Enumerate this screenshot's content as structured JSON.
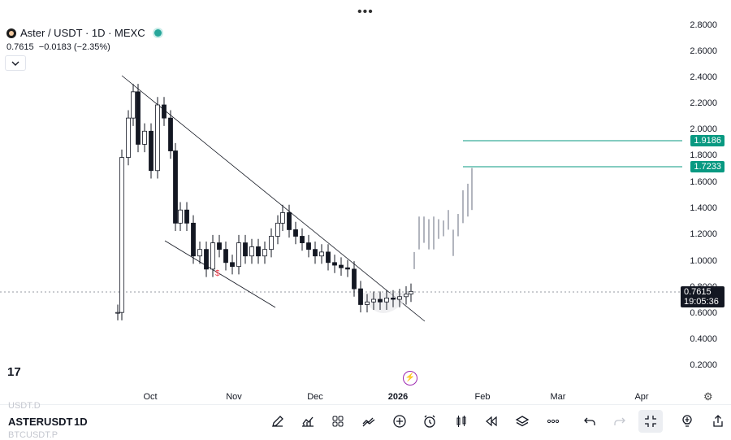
{
  "header": {
    "title": "Aster / USDT · 1D · MEXC",
    "price": "0.7615",
    "change": "−0.0183 (−2.35%)"
  },
  "top_menu_glyph": "•••",
  "y_axis": {
    "ticks": [
      "2.8000",
      "2.6000",
      "2.4000",
      "2.2000",
      "2.0000",
      "1.8000",
      "1.6000",
      "1.4000",
      "1.2000",
      "1.0000",
      "0.8000",
      "0.6000",
      "0.4000",
      "0.2000"
    ],
    "last_price": "0.7615",
    "countdown": "19:05:36",
    "levels": [
      "1.9186",
      "1.7233"
    ]
  },
  "x_axis": {
    "ticks": [
      "Oct",
      "Nov",
      "Dec",
      "2026",
      "Feb",
      "Mar",
      "Apr"
    ]
  },
  "chart_data": {
    "type": "candlestick",
    "symbol": "Aster / USDT",
    "interval": "1D",
    "ylim": [
      0.2,
      2.8
    ],
    "last_price": 0.7615,
    "levels": [
      1.9186,
      1.7233
    ],
    "trendlines": [
      {
        "from": [
          "Sep 20",
          2.4
        ],
        "to": [
          "Jan 13",
          0.55
        ]
      },
      {
        "from": [
          "Sep 29",
          1.0
        ],
        "to": [
          "Nov 25",
          0.6
        ]
      }
    ],
    "projection_bars": "light-grey bars from ~Jan 9 (1.0) rising to ~Jan 27 (1.72)",
    "colors": {
      "up": "#ffffff",
      "down": "#131722",
      "level": "#089981",
      "projection": "#b2b5be"
    }
  },
  "bottom_toolbar": {
    "ghost_above": "USDT.D",
    "symbol": "ASTERUSDT",
    "ghost_below": "BTCUSDT.P",
    "interval": "1D"
  },
  "chart_marker": "$",
  "logo_text": "17"
}
